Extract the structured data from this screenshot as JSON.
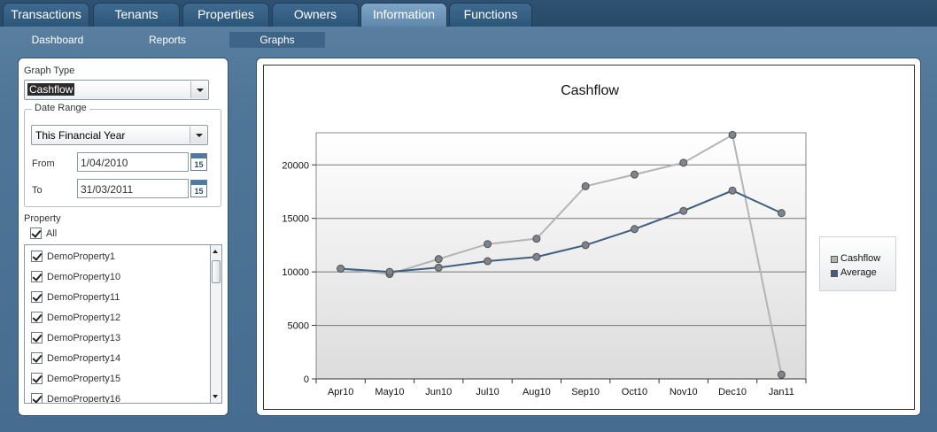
{
  "tabs": [
    {
      "label": "Transactions",
      "active": false
    },
    {
      "label": "Tenants",
      "active": false
    },
    {
      "label": "Properties",
      "active": false
    },
    {
      "label": "Owners",
      "active": false
    },
    {
      "label": "Information",
      "active": true
    },
    {
      "label": "Functions",
      "active": false
    }
  ],
  "subnav": [
    {
      "label": "Dashboard",
      "active": false
    },
    {
      "label": "Reports",
      "active": false
    },
    {
      "label": "Graphs",
      "active": true
    }
  ],
  "filters": {
    "graph_type_label": "Graph Type",
    "graph_type_value": "Cashflow",
    "date_range_label": "Date Range",
    "date_range_value": "This Financial Year",
    "from_label": "From",
    "from_value": "1/04/2010",
    "to_label": "To",
    "to_value": "31/03/2011",
    "calendar_day": "15",
    "property_label": "Property",
    "all_label": "All",
    "properties": [
      "DemoProperty1",
      "DemoProperty10",
      "DemoProperty11",
      "DemoProperty12",
      "DemoProperty13",
      "DemoProperty14",
      "DemoProperty15",
      "DemoProperty16"
    ]
  },
  "colors": {
    "cashflow": "#b4b4b4",
    "average": "#3e5f80"
  },
  "chart_data": {
    "type": "line",
    "title": "Cashflow",
    "categories": [
      "Apr10",
      "May10",
      "Jun10",
      "Jul10",
      "Aug10",
      "Sep10",
      "Oct10",
      "Nov10",
      "Dec10",
      "Jan11"
    ],
    "series": [
      {
        "name": "Cashflow",
        "values": [
          10300,
          9800,
          11200,
          12600,
          13100,
          18000,
          19100,
          20200,
          22800,
          400
        ]
      },
      {
        "name": "Average",
        "values": [
          10300,
          10000,
          10400,
          11000,
          11400,
          12500,
          14000,
          15700,
          17600,
          15500
        ]
      }
    ],
    "y_ticks": [
      0,
      5000,
      10000,
      15000,
      20000
    ],
    "ylim": [
      0,
      23000
    ],
    "legend_position": "right",
    "grid": true
  }
}
